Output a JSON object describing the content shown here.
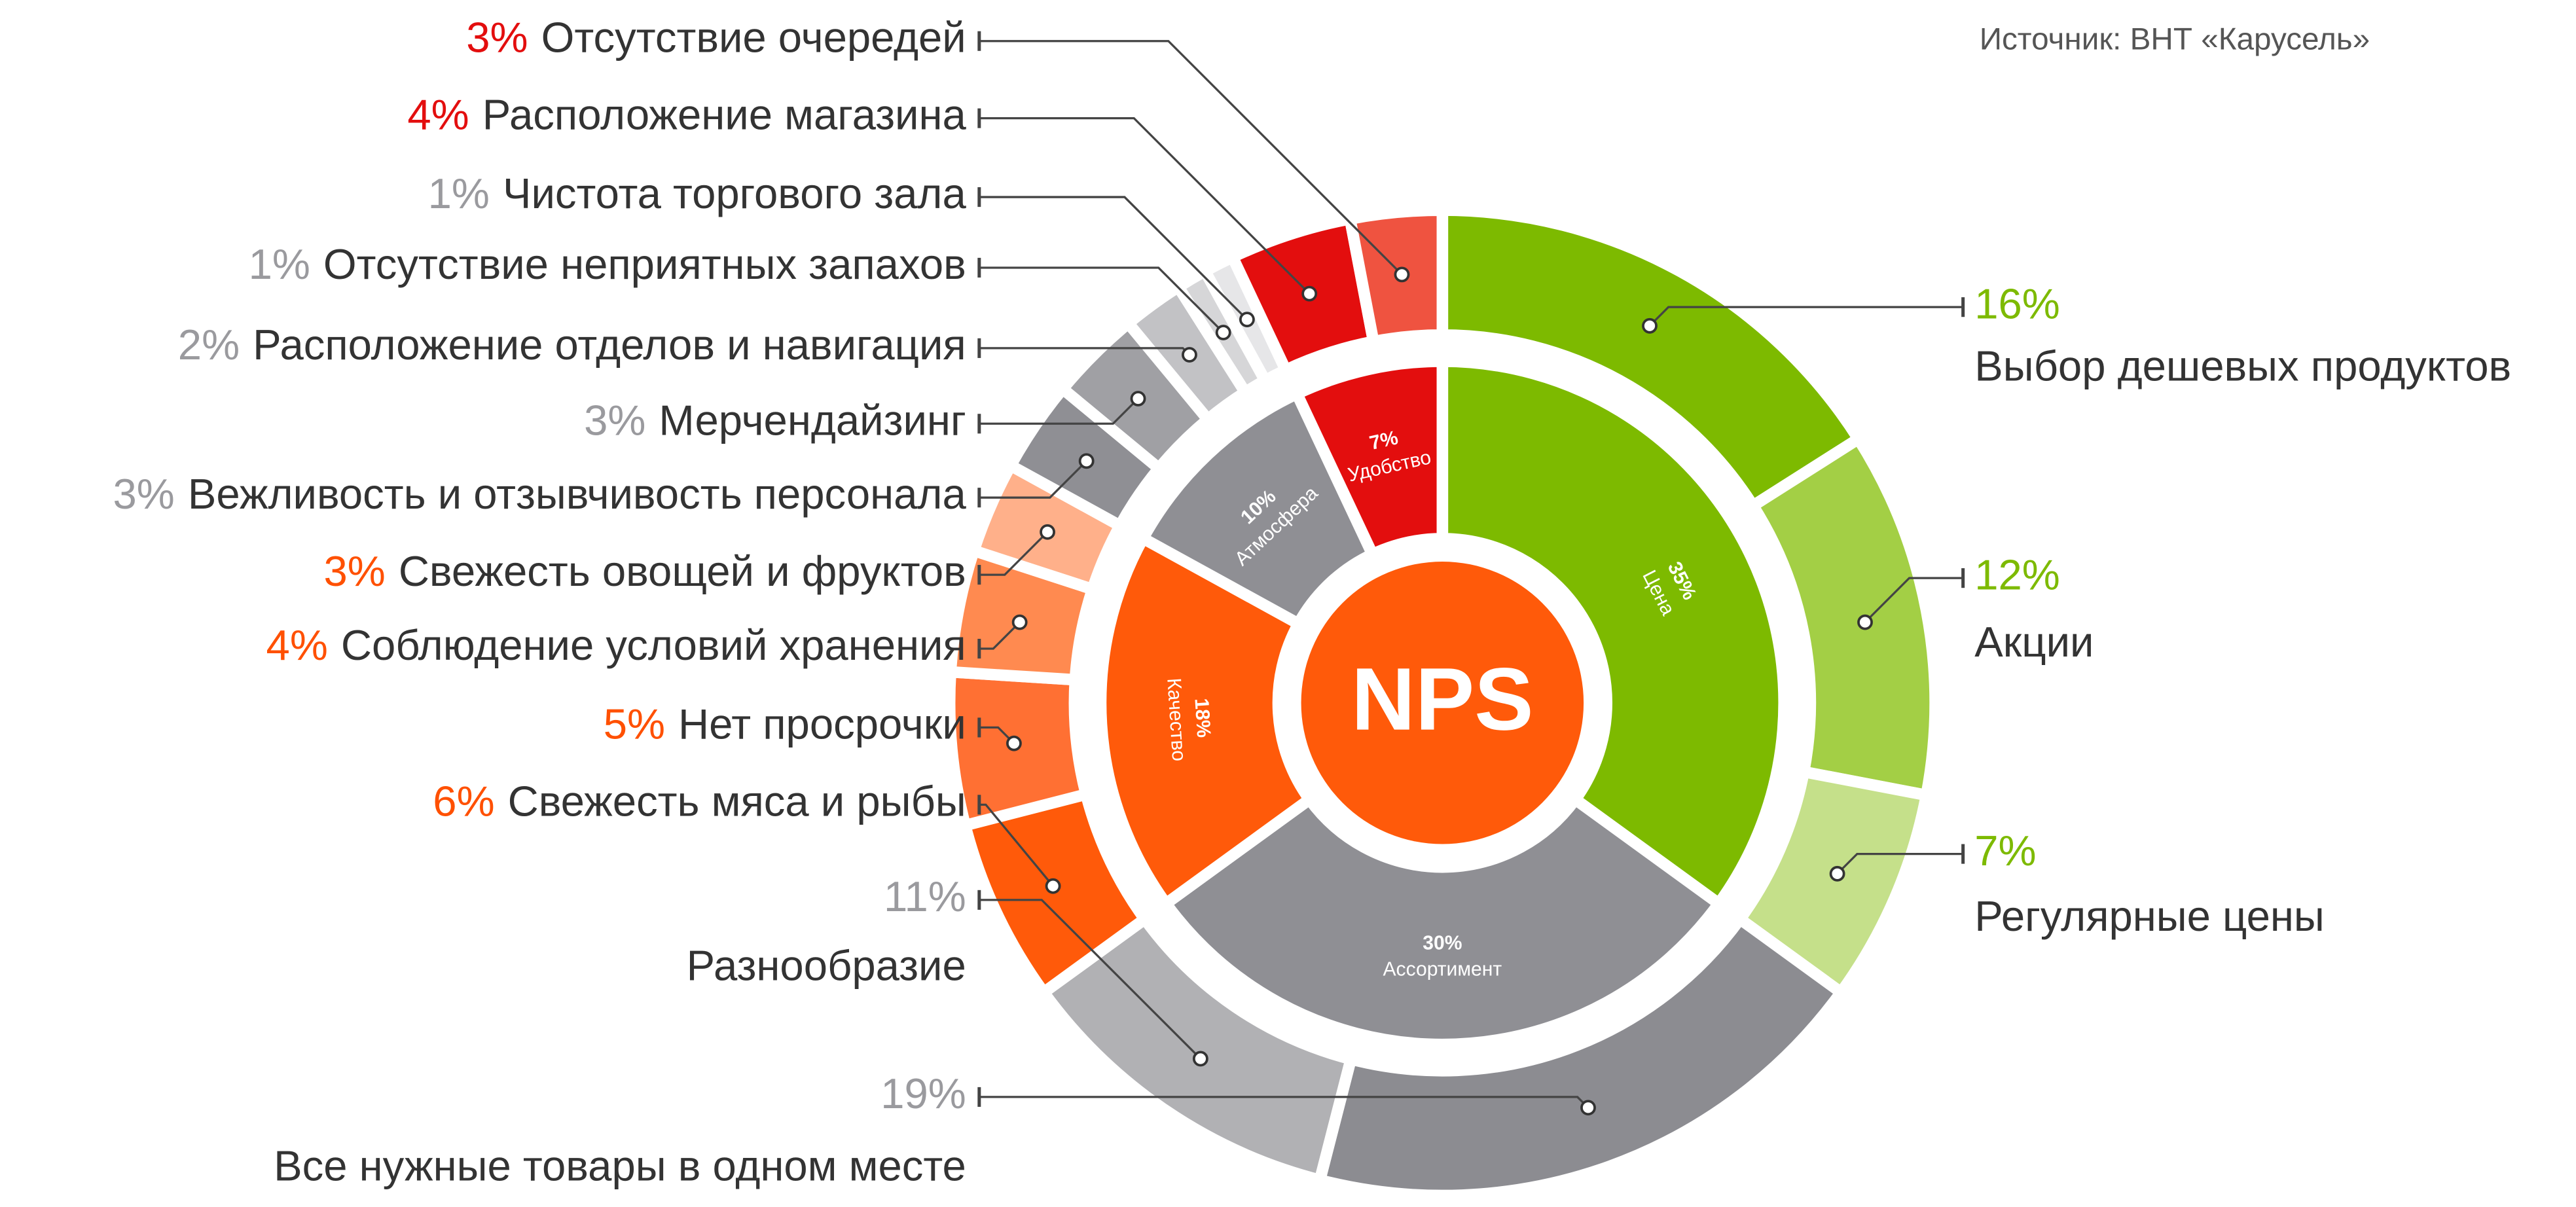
{
  "chart_data": {
    "type": "sunburst",
    "title": "NPS",
    "source": "Источник: ВНТ «Карусель»",
    "series": [
      {
        "name": "Цена",
        "value": 35,
        "value_label": "35%",
        "color": "#7dba00",
        "label_color": "#7dba00",
        "children": [
          {
            "name": "Выбор дешевых продуктов",
            "value": 16,
            "value_label": "16%",
            "color": "#7dba00"
          },
          {
            "name": "Акции",
            "value": 12,
            "value_label": "12%",
            "color": "#a3cf45"
          },
          {
            "name": "Регулярные цены",
            "value": 7,
            "value_label": "7%",
            "color": "#c5e08a"
          }
        ]
      },
      {
        "name": "Ассортимент",
        "value": 30,
        "value_label": "30%",
        "color": "#8f8f94",
        "label_color": "#9a9a9e",
        "children": [
          {
            "name": "Все нужные товары в одном месте",
            "value": 19,
            "value_label": "19%",
            "color": "#8c8c91"
          },
          {
            "name": "Разнообразие",
            "value": 11,
            "value_label": "11%",
            "color": "#b1b1b4"
          }
        ]
      },
      {
        "name": "Качество",
        "value": 18,
        "value_label": "18%",
        "color": "#ff5a0a",
        "label_color": "#ff5000",
        "children": [
          {
            "name": "Свежесть мяса и рыбы",
            "value": 6,
            "value_label": "6%",
            "color": "#ff5a0a"
          },
          {
            "name": "Нет просрочки",
            "value": 5,
            "value_label": "5%",
            "color": "#ff7033"
          },
          {
            "name": "Соблюдение условий хранения",
            "value": 4,
            "value_label": "4%",
            "color": "#ff8a50"
          },
          {
            "name": "Свежесть овощей и фруктов",
            "value": 3,
            "value_label": "3%",
            "color": "#ffb08a"
          }
        ]
      },
      {
        "name": "Атмосфера",
        "value": 10,
        "value_label": "10%",
        "color": "#8f8f94",
        "label_color": "#9a9a9e",
        "children": [
          {
            "name": "Вежливость и отзывчивость персонала",
            "value": 3,
            "value_label": "3%",
            "color": "#8f8f94"
          },
          {
            "name": "Мерчендайзинг",
            "value": 3,
            "value_label": "3%",
            "color": "#a0a0a4"
          },
          {
            "name": "Расположение отделов и навигация",
            "value": 2,
            "value_label": "2%",
            "color": "#c2c2c5"
          },
          {
            "name": "Отсутствие неприятных запахов",
            "value": 1,
            "value_label": "1%",
            "color": "#d6d6d8"
          },
          {
            "name": "Чистота торгового зала",
            "value": 1,
            "value_label": "1%",
            "color": "#e6e6e8"
          }
        ]
      },
      {
        "name": "Удобство",
        "value": 7,
        "value_label": "7%",
        "color": "#e30e0e",
        "label_color": "#e30e0e",
        "children": [
          {
            "name": "Расположение магазина",
            "value": 4,
            "value_label": "4%",
            "color": "#e30e0e"
          },
          {
            "name": "Отсутствие очередей",
            "value": 3,
            "value_label": "3%",
            "color": "#ef5340"
          }
        ]
      }
    ]
  }
}
